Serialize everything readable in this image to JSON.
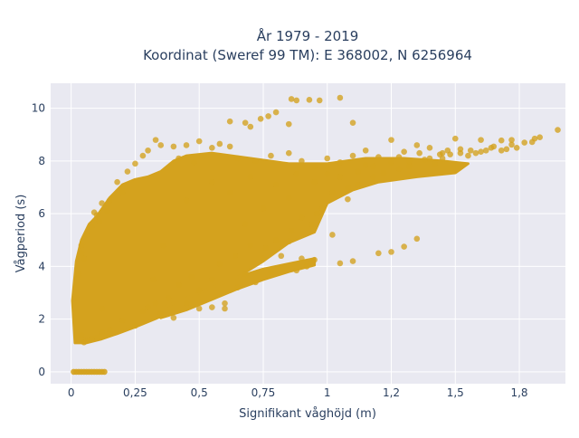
{
  "chart_data": {
    "type": "scatter",
    "title_line1": "År 1979 - 2019",
    "title_line2": "Koordinat (Sweref 99 TM): E 368002, N 6256964",
    "xlabel": "Signifikant våghöjd (m)",
    "ylabel": "Vågperiod (s)",
    "xlim": [
      -0.08,
      1.93
    ],
    "ylim": [
      -0.45,
      10.95
    ],
    "x_ticks": [
      0,
      0.25,
      0.5,
      0.75,
      1,
      1.25,
      1.5,
      1.75
    ],
    "x_tick_labels": [
      "0",
      "0,25",
      "0,5",
      "0,75",
      "1",
      "1,2",
      "1,5",
      "1,8"
    ],
    "y_ticks": [
      0,
      2,
      4,
      6,
      8,
      10
    ],
    "y_tick_labels": [
      "0",
      "2",
      "4",
      "6",
      "8",
      "10"
    ],
    "grid": true,
    "legend": "none",
    "marker_color": "#D4A21E",
    "plot_bg": "#E9E9F1",
    "points": [
      [
        1.9,
        9.18
      ],
      [
        1.83,
        8.9
      ],
      [
        1.81,
        8.85
      ],
      [
        1.8,
        8.72
      ],
      [
        1.77,
        8.7
      ],
      [
        1.72,
        8.62
      ],
      [
        1.7,
        8.45
      ],
      [
        1.68,
        8.78
      ],
      [
        1.65,
        8.55
      ],
      [
        1.62,
        8.4
      ],
      [
        1.6,
        8.8
      ],
      [
        1.58,
        8.3
      ],
      [
        1.55,
        8.2
      ],
      [
        1.52,
        8.45
      ],
      [
        1.5,
        8.85
      ],
      [
        1.48,
        8.25
      ],
      [
        1.45,
        8.1
      ],
      [
        1.42,
        7.9
      ],
      [
        1.38,
        8.05
      ],
      [
        1.35,
        8.6
      ],
      [
        1.32,
        7.8
      ],
      [
        1.28,
        7.7
      ],
      [
        1.25,
        8.8
      ],
      [
        1.22,
        7.55
      ],
      [
        1.18,
        7.4
      ],
      [
        1.15,
        7.85
      ],
      [
        1.12,
        7.1
      ],
      [
        1.35,
        5.05
      ],
      [
        1.3,
        4.75
      ],
      [
        1.25,
        4.55
      ],
      [
        1.2,
        4.5
      ],
      [
        1.1,
        4.2
      ],
      [
        1.05,
        4.12
      ],
      [
        1.02,
        5.2
      ],
      [
        0.98,
        6.2
      ],
      [
        0.95,
        4.25
      ],
      [
        0.92,
        4.0
      ],
      [
        1.08,
        6.55
      ],
      [
        1.05,
        10.4
      ],
      [
        0.97,
        10.3
      ],
      [
        0.93,
        10.32
      ],
      [
        0.88,
        10.3
      ],
      [
        0.86,
        10.35
      ],
      [
        0.8,
        9.85
      ],
      [
        0.77,
        9.7
      ],
      [
        0.62,
        9.5
      ],
      [
        0.85,
        9.4
      ],
      [
        0.74,
        9.6
      ],
      [
        1.1,
        9.45
      ],
      [
        0.68,
        9.45
      ],
      [
        0.7,
        9.3
      ],
      [
        0.88,
        3.85
      ],
      [
        0.9,
        4.3
      ],
      [
        0.85,
        4.95
      ],
      [
        0.82,
        4.4
      ],
      [
        0.78,
        3.8
      ],
      [
        0.75,
        4.3
      ],
      [
        0.72,
        3.4
      ],
      [
        0.68,
        3.7
      ],
      [
        0.65,
        3.2
      ],
      [
        0.6,
        2.6
      ],
      [
        0.55,
        2.45
      ],
      [
        0.5,
        2.4
      ],
      [
        0.45,
        2.6
      ],
      [
        0.4,
        2.05
      ],
      [
        0.35,
        2.2
      ],
      [
        0.3,
        2.45
      ],
      [
        0.6,
        2.4
      ],
      [
        0.58,
        8.65
      ],
      [
        0.62,
        8.55
      ],
      [
        0.55,
        8.5
      ],
      [
        0.5,
        8.75
      ],
      [
        0.45,
        8.6
      ],
      [
        0.4,
        8.55
      ],
      [
        0.35,
        8.6
      ],
      [
        0.33,
        8.8
      ],
      [
        0.3,
        8.4
      ],
      [
        0.28,
        8.2
      ],
      [
        0.22,
        7.6
      ],
      [
        0.2,
        6.8
      ],
      [
        0.18,
        7.2
      ],
      [
        0.15,
        6.5
      ],
      [
        0.14,
        6.1
      ],
      [
        0.12,
        6.4
      ],
      [
        0.1,
        5.95
      ],
      [
        0.08,
        5.5
      ],
      [
        0.06,
        5.2
      ],
      [
        0.04,
        4.5
      ],
      [
        0.03,
        3.7
      ],
      [
        0.02,
        2.8
      ],
      [
        0.04,
        4.8
      ],
      [
        0.05,
        4.3
      ],
      [
        0.09,
        6.05
      ],
      [
        0.11,
        5.7
      ],
      [
        0.25,
        7.9
      ],
      [
        0.42,
        8.1
      ],
      [
        0.48,
        7.95
      ],
      [
        0.52,
        8.2
      ],
      [
        0.65,
        8.1
      ],
      [
        0.72,
        8.0
      ],
      [
        0.78,
        8.2
      ],
      [
        0.85,
        8.3
      ],
      [
        0.9,
        8.0
      ],
      [
        0.95,
        7.8
      ],
      [
        1.0,
        8.1
      ],
      [
        1.05,
        7.95
      ],
      [
        1.1,
        8.2
      ],
      [
        1.15,
        8.4
      ],
      [
        1.2,
        8.15
      ],
      [
        1.3,
        8.35
      ],
      [
        1.4,
        8.5
      ],
      [
        1.45,
        8.3
      ],
      [
        1.02,
        6.8
      ],
      [
        0.96,
        6.0
      ],
      [
        0.94,
        5.6
      ],
      [
        0.9,
        5.85
      ],
      [
        0.86,
        5.35
      ],
      [
        0.8,
        5.0
      ],
      [
        0.76,
        4.7
      ],
      [
        0.7,
        4.8
      ],
      [
        0.68,
        5.6
      ],
      [
        0.64,
        4.4
      ],
      [
        0.58,
        4.1
      ],
      [
        0.55,
        3.5
      ],
      [
        0.5,
        3.1
      ],
      [
        0.47,
        3.6
      ],
      [
        0.42,
        3.3
      ],
      [
        0.38,
        2.8
      ],
      [
        0.33,
        2.6
      ],
      [
        0.28,
        2.3
      ],
      [
        0.2,
        1.95
      ],
      [
        0.15,
        1.6
      ],
      [
        0.12,
        1.5
      ],
      [
        0.1,
        1.3
      ],
      [
        0.08,
        1.25
      ],
      [
        0.06,
        1.18
      ],
      [
        0.05,
        1.12
      ],
      [
        0.04,
        1.4
      ],
      [
        0.12,
        2.4
      ],
      [
        0.25,
        1.75
      ],
      [
        0.32,
        3.5
      ],
      [
        0.36,
        4.8
      ],
      [
        0.45,
        6.5
      ],
      [
        0.55,
        7.2
      ],
      [
        0.62,
        6.8
      ],
      [
        0.7,
        7.4
      ],
      [
        0.75,
        6.2
      ],
      [
        0.8,
        7.1
      ],
      [
        0.85,
        6.6
      ],
      [
        0.88,
        7.5
      ],
      [
        0.95,
        7.2
      ],
      [
        1.0,
        7.5
      ],
      [
        1.05,
        7.4
      ],
      [
        1.08,
        7.0
      ],
      [
        1.12,
        7.6
      ],
      [
        1.18,
        7.8
      ],
      [
        1.25,
        7.95
      ],
      [
        1.28,
        8.15
      ],
      [
        1.32,
        8.0
      ],
      [
        1.36,
        8.3
      ],
      [
        1.4,
        8.1
      ],
      [
        1.44,
        8.25
      ],
      [
        1.47,
        8.4
      ],
      [
        1.52,
        8.3
      ],
      [
        1.56,
        8.4
      ],
      [
        1.6,
        8.35
      ],
      [
        1.64,
        8.5
      ],
      [
        1.68,
        8.4
      ],
      [
        1.72,
        8.8
      ],
      [
        1.74,
        8.5
      ]
    ],
    "zero_period_points": [
      [
        0.01,
        0
      ],
      [
        0.02,
        0
      ],
      [
        0.03,
        0
      ],
      [
        0.04,
        0
      ],
      [
        0.05,
        0
      ],
      [
        0.06,
        0
      ],
      [
        0.07,
        0
      ],
      [
        0.08,
        0
      ],
      [
        0.09,
        0
      ],
      [
        0.1,
        0
      ],
      [
        0.11,
        0
      ],
      [
        0.12,
        0
      ],
      [
        0.13,
        0
      ]
    ]
  }
}
